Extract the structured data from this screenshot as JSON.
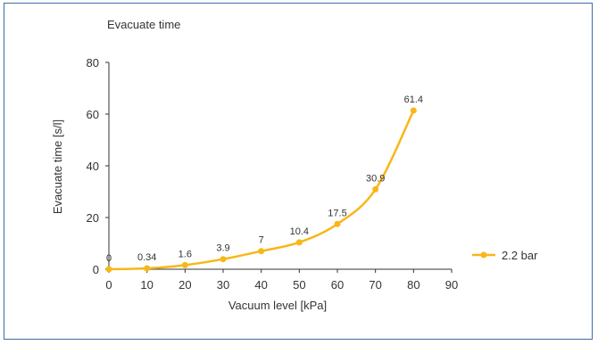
{
  "chart_data": {
    "type": "line",
    "title": "Evacuate time",
    "xlabel": "Vacuum level [kPa]",
    "ylabel": "Evacuate time [s/l]",
    "xlim": [
      0,
      90
    ],
    "ylim": [
      0,
      80
    ],
    "xticks": [
      0,
      10,
      20,
      30,
      40,
      50,
      60,
      70,
      80,
      90
    ],
    "yticks": [
      0,
      20,
      40,
      60,
      80
    ],
    "grid": false,
    "legend_position": "right",
    "smooth": true,
    "series": [
      {
        "name": "2.2 bar",
        "color": "#f7b718",
        "x": [
          0,
          10,
          20,
          30,
          40,
          50,
          60,
          70,
          80
        ],
        "y": [
          0,
          0.34,
          1.6,
          3.9,
          7,
          10.4,
          17.5,
          30.9,
          61.4
        ],
        "labels": [
          "0",
          "0.34",
          "1.6",
          "3.9",
          "7",
          "10.4",
          "17.5",
          "30.9",
          "61.4"
        ]
      }
    ]
  }
}
